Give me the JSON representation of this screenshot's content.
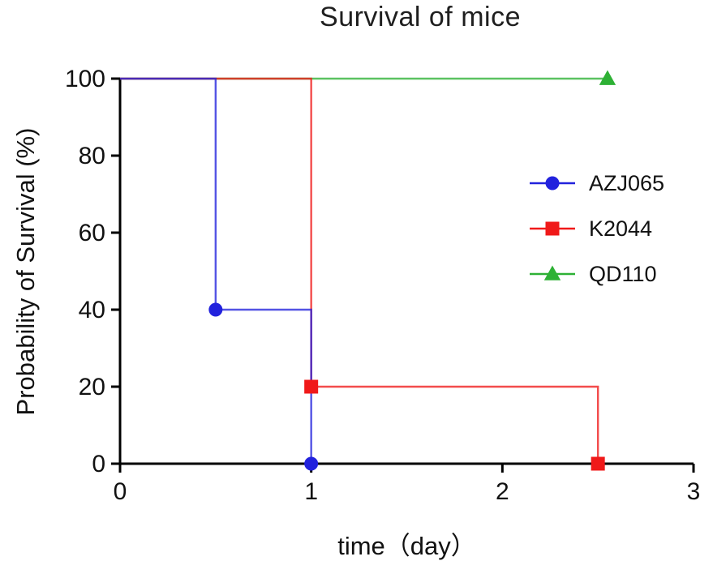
{
  "page": {
    "background": "#ffffff"
  },
  "chart_data": {
    "type": "line",
    "chart_style": "kaplan-meier-step-survival",
    "title": "Survival of mice",
    "xlabel": "time（day）",
    "ylabel": "Probability of Survival (%)",
    "xlim": [
      0,
      3
    ],
    "ylim": [
      0,
      100
    ],
    "xticks": [
      0,
      1,
      2,
      3
    ],
    "yticks": [
      0,
      20,
      40,
      60,
      80,
      100
    ],
    "grid": false,
    "legend_position": "right-middle-inside",
    "axis_color": "#000000",
    "series": [
      {
        "name": "AZJ065",
        "color": "#2222dd",
        "marker": "circle",
        "points": [
          [
            0,
            100
          ],
          [
            0.5,
            100
          ],
          [
            0.5,
            40
          ],
          [
            1,
            40
          ],
          [
            1,
            0
          ]
        ],
        "marker_points": [
          [
            0.5,
            40
          ],
          [
            1,
            0
          ]
        ]
      },
      {
        "name": "K2044",
        "color": "#f01919",
        "marker": "square",
        "points": [
          [
            0,
            100
          ],
          [
            1,
            100
          ],
          [
            1,
            20
          ],
          [
            2.5,
            20
          ],
          [
            2.5,
            0
          ]
        ],
        "marker_points": [
          [
            1,
            20
          ],
          [
            2.5,
            0
          ]
        ]
      },
      {
        "name": "QD110",
        "color": "#2eb135",
        "marker": "triangle",
        "points": [
          [
            0,
            100
          ],
          [
            2.55,
            100
          ]
        ],
        "marker_points": [
          [
            2.55,
            100
          ]
        ]
      }
    ]
  }
}
